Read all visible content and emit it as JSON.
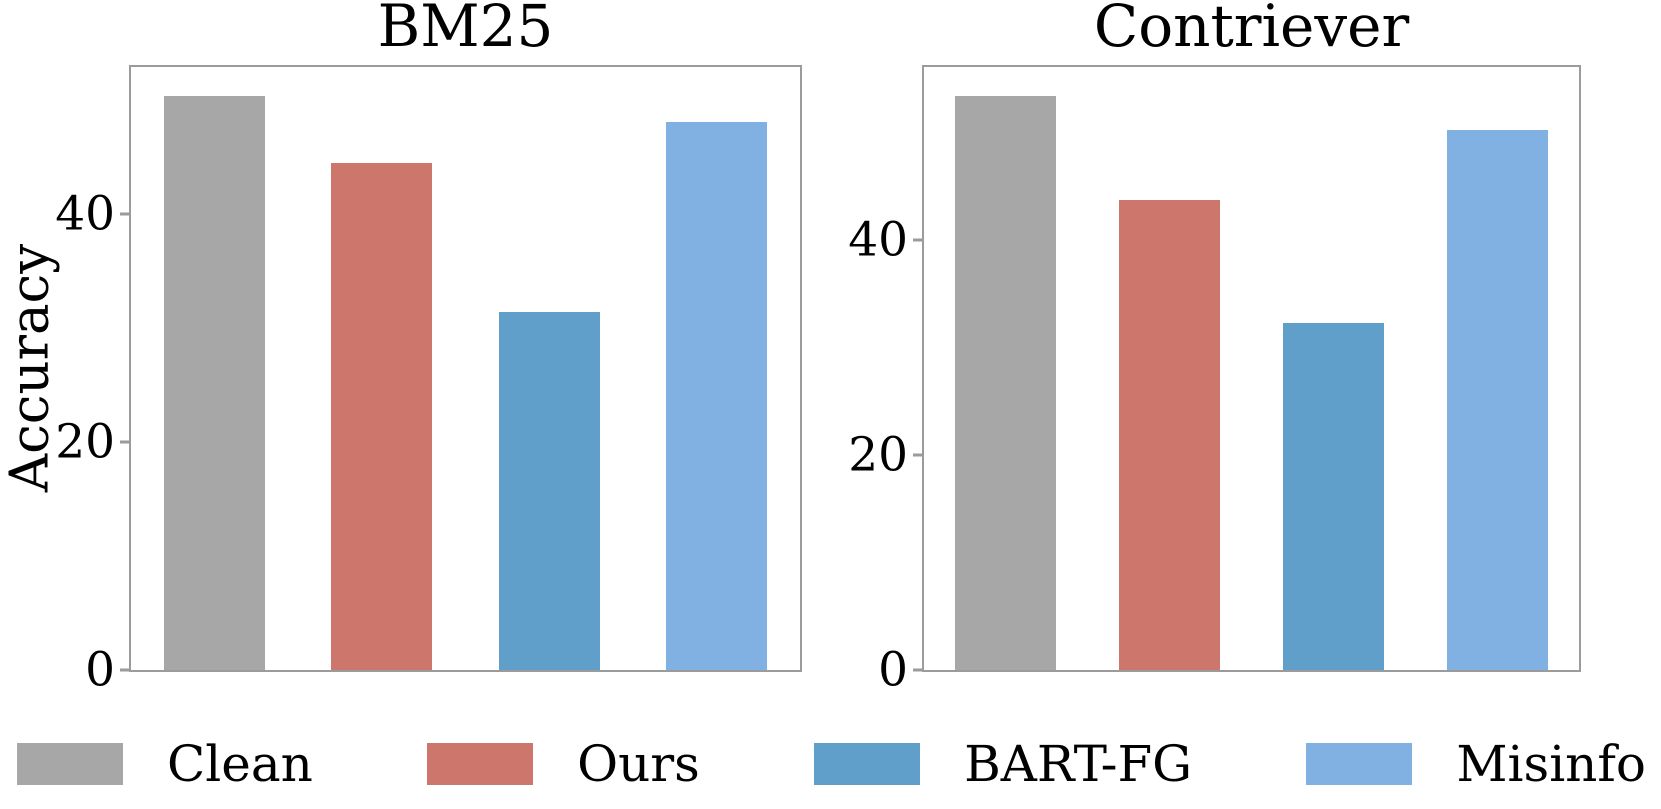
{
  "chart_data": [
    {
      "type": "bar",
      "title": "BM25",
      "ylabel": "Accuracy",
      "xlabel": "",
      "categories": [
        "Clean",
        "Ours",
        "BART-FG",
        "Misinfo"
      ],
      "values": [
        50.4,
        44.5,
        31.4,
        48.1
      ],
      "bar_colors": [
        "#a7a7a7",
        "#cd766b",
        "#5f9fc9",
        "#80b1e2"
      ],
      "ylim": [
        0,
        52.9
      ],
      "yticks": [
        0,
        20,
        40
      ],
      "grid": false,
      "legend_position": "none"
    },
    {
      "type": "bar",
      "title": "Contriever",
      "ylabel": "",
      "xlabel": "",
      "categories": [
        "Clean",
        "Ours",
        "BART-FG",
        "Misinfo"
      ],
      "values": [
        53.4,
        43.7,
        32.3,
        50.2
      ],
      "bar_colors": [
        "#a7a7a7",
        "#cd766b",
        "#5f9fc9",
        "#80b1e2"
      ],
      "ylim": [
        0,
        56.1
      ],
      "yticks": [
        0,
        20,
        40
      ],
      "grid": false,
      "legend_position": "none"
    }
  ],
  "legend": {
    "items": [
      {
        "label": "Clean",
        "color": "#a7a7a7"
      },
      {
        "label": "Ours",
        "color": "#cd766b"
      },
      {
        "label": "BART-FG",
        "color": "#5f9fc9"
      },
      {
        "label": "Misinfo",
        "color": "#80b1e2"
      }
    ]
  },
  "style_colors": {
    "spine": "#9b9b9b",
    "text": "#000000",
    "background": "#ffffff"
  }
}
